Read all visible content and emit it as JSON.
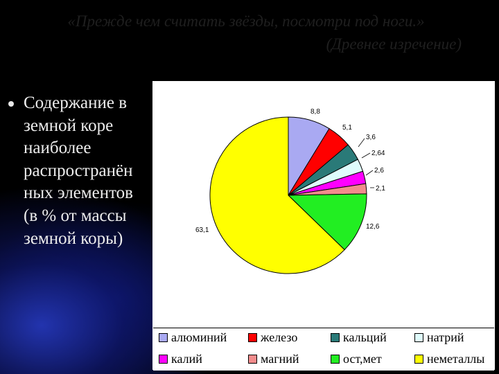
{
  "slide": {
    "quote": "«Прежде чем считать звёзды, посмотри под ноги.»",
    "quote_source": "(Древнее изречение)",
    "bullet_lines": [
      "Содержание в",
      "земной коре",
      "наиболее",
      "распространён",
      "ных элементов",
      "(в % от массы",
      "земной коры)"
    ]
  },
  "chart_data": {
    "type": "pie",
    "slices": [
      {
        "label": "алюминий",
        "value": 8.8,
        "value_label": "8,8",
        "color": "#a9a9f2"
      },
      {
        "label": "железо",
        "value": 5.1,
        "value_label": "5,1",
        "color": "#ff0000"
      },
      {
        "label": "кальций",
        "value": 3.6,
        "value_label": "3,6",
        "color": "#2a7a78"
      },
      {
        "label": "натрий",
        "value": 2.64,
        "value_label": "2,64",
        "color": "#dffcfc"
      },
      {
        "label": "калий",
        "value": 2.6,
        "value_label": "2,6",
        "color": "#ff00ff"
      },
      {
        "label": "магний",
        "value": 2.1,
        "value_label": "2,1",
        "color": "#f28c8c"
      },
      {
        "label": "ост,мет",
        "value": 12.6,
        "value_label": "12,6",
        "color": "#22ee22"
      },
      {
        "label": "неметаллы",
        "value": 63.1,
        "value_label": "63,1",
        "color": "#ffff00"
      }
    ],
    "legend": [
      {
        "label": "алюминий",
        "color": "#a9a9f2"
      },
      {
        "label": "железо",
        "color": "#ff0000"
      },
      {
        "label": "кальций",
        "color": "#2a7a78"
      },
      {
        "label": "натрий",
        "color": "#dffcfc"
      },
      {
        "label": "калий",
        "color": "#ff00ff"
      },
      {
        "label": "магний",
        "color": "#f28c8c"
      },
      {
        "label": "ост,мет",
        "color": "#22ee22"
      },
      {
        "label": "неметаллы",
        "color": "#ffff00"
      }
    ],
    "legend_placement": "bottom",
    "start_angle": "12 o'clock",
    "direction": "clockwise"
  }
}
